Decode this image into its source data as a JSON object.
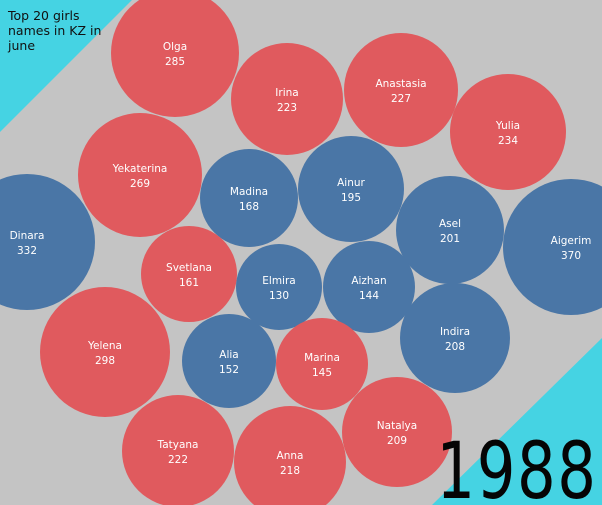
{
  "title": "Top 20 girls names in KZ in june",
  "year": "1988",
  "colors": {
    "background": "#c4c4c4",
    "corner": "#45d3e3",
    "red": "#e05a5e",
    "blue": "#4a76a6",
    "text": "#ffffff"
  },
  "chart_data": {
    "type": "bubble",
    "title": "Top 20 girls names in KZ in june",
    "series": [
      {
        "name": "Olga",
        "value": 285,
        "group": "red"
      },
      {
        "name": "Irina",
        "value": 223,
        "group": "red"
      },
      {
        "name": "Anastasia",
        "value": 227,
        "group": "red"
      },
      {
        "name": "Yulia",
        "value": 234,
        "group": "red"
      },
      {
        "name": "Yekaterina",
        "value": 269,
        "group": "red"
      },
      {
        "name": "Madina",
        "value": 168,
        "group": "blue"
      },
      {
        "name": "Ainur",
        "value": 195,
        "group": "blue"
      },
      {
        "name": "Dinara",
        "value": 332,
        "group": "blue"
      },
      {
        "name": "Asel",
        "value": 201,
        "group": "blue"
      },
      {
        "name": "Aigerim",
        "value": 370,
        "group": "blue"
      },
      {
        "name": "Svetlana",
        "value": 161,
        "group": "red"
      },
      {
        "name": "Elmira",
        "value": 130,
        "group": "blue"
      },
      {
        "name": "Aizhan",
        "value": 144,
        "group": "blue"
      },
      {
        "name": "Yelena",
        "value": 298,
        "group": "red"
      },
      {
        "name": "Alia",
        "value": 152,
        "group": "blue"
      },
      {
        "name": "Marina",
        "value": 145,
        "group": "red"
      },
      {
        "name": "Indira",
        "value": 208,
        "group": "blue"
      },
      {
        "name": "Tatyana",
        "value": 222,
        "group": "red"
      },
      {
        "name": "Anna",
        "value": 218,
        "group": "red"
      },
      {
        "name": "Natalya",
        "value": 209,
        "group": "red"
      }
    ]
  }
}
